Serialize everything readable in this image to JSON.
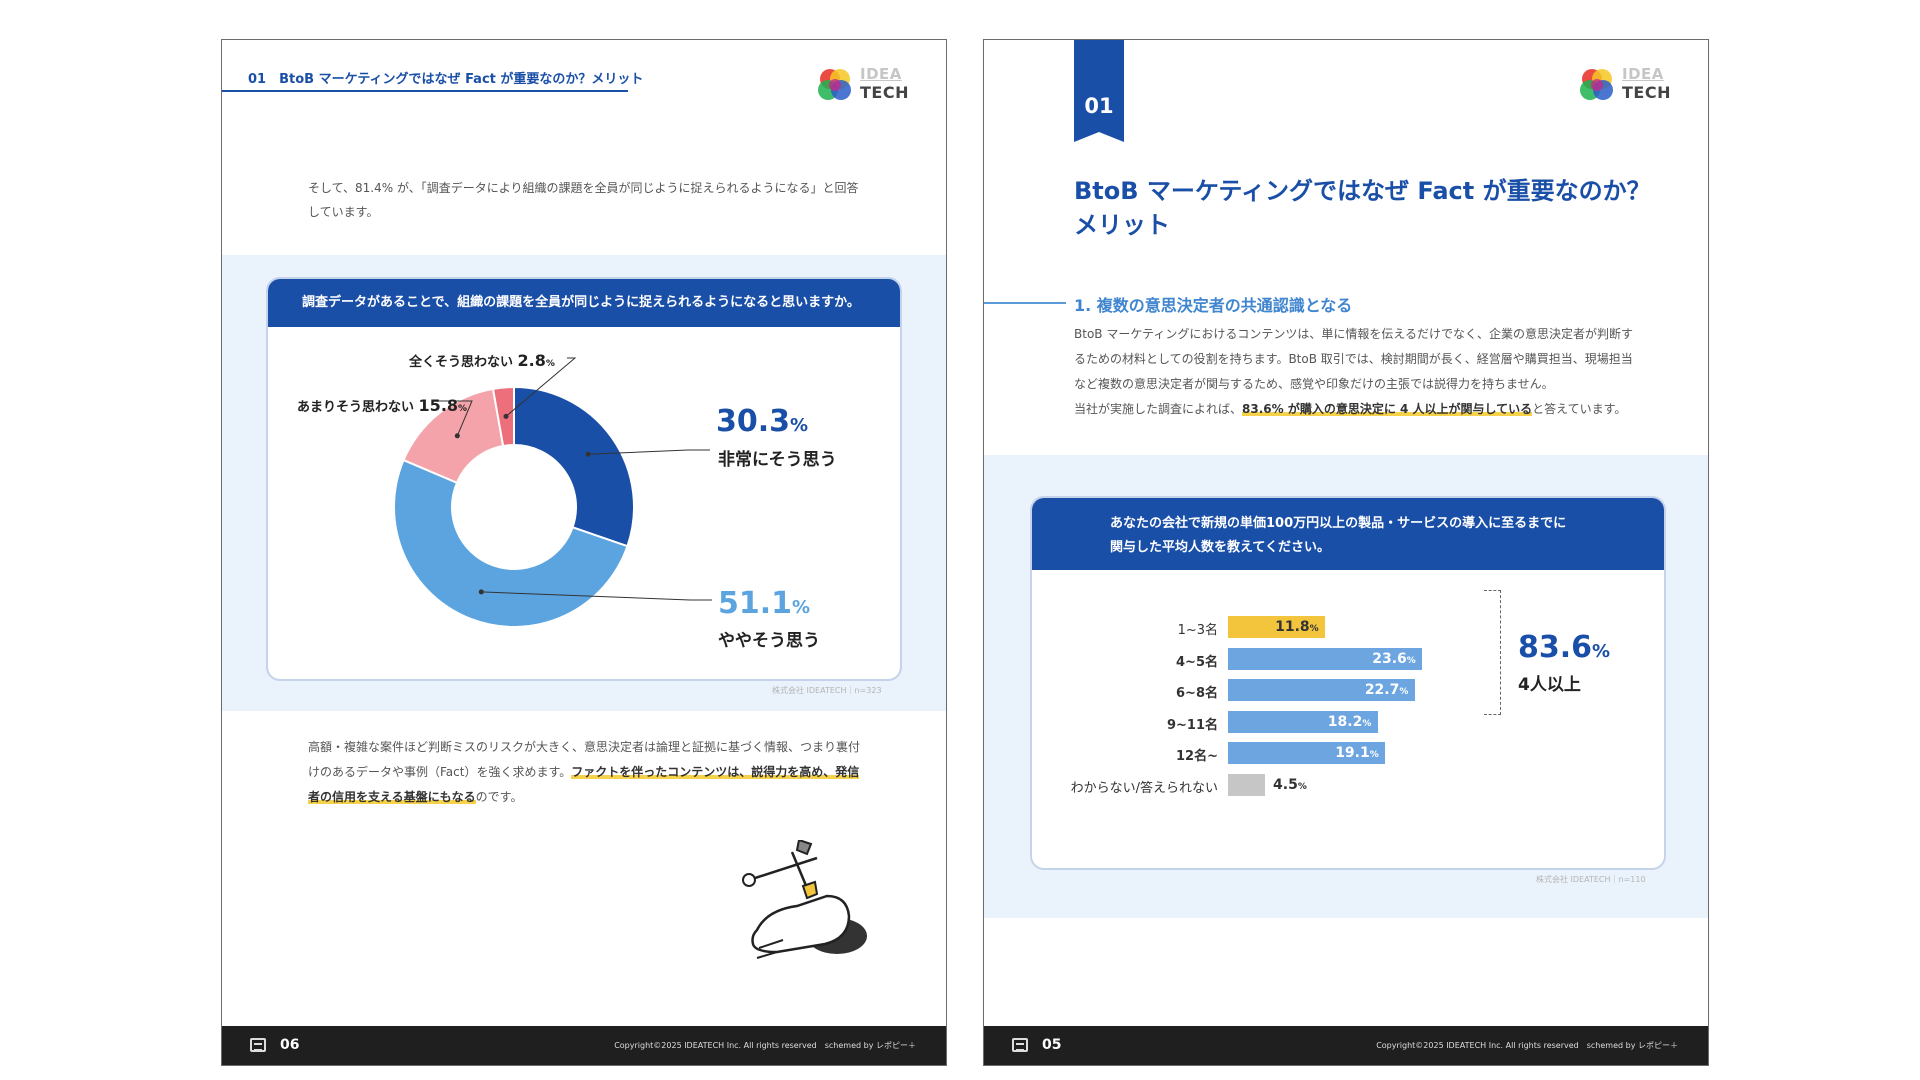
{
  "brand": {
    "line1": "IDEA",
    "line2": "TECH",
    "colors": {
      "red": "#e8382f",
      "green": "#1fb14f",
      "blue": "#2a5ec9",
      "magenta": "#c22a8e",
      "yellow": "#f4c724"
    }
  },
  "left_page": {
    "header": "01　BtoB マーケティングではなぜ Fact が重要なのか？メリット",
    "intro": "そして、81.4% が、「調査データにより組織の課題を全員が同じように捉えられるようになる」と回答しています。",
    "card": {
      "question": "調査データがあることで、組織の課題を全員が同じように捉えられるようになると思いますか。",
      "source": "株式会社 IDEATECH｜n=323"
    },
    "body": {
      "text1": "高額・複雑な案件ほど判断ミスのリスクが大きく、意思決定者は論理と証拠に基づく情報、つまり裏付けのあるデータや事例（Fact）を強く求めます。",
      "highlight": "ファクトを伴ったコンテンツは、説得力を高め、発信者の信用を支える基盤にもなる",
      "text2": "のです。"
    },
    "footer": {
      "page": "06",
      "copyright": "Copyright©2025 IDEATECH Inc. All rights reserved　schemed by レポピー＋"
    }
  },
  "right_page": {
    "ribbon": "01",
    "title_line1": "BtoB マーケティングではなぜ Fact が重要なのか？",
    "title_line2": "メリット",
    "subheading": "1. 複数の意思決定者の共通認識となる",
    "paragraph": "BtoB マーケティングにおけるコンテンツは、単に情報を伝えるだけでなく、企業の意思決定者が判断するための材料としての役割を持ちます。BtoB 取引では、検討期間が長く、経営層や購買担当、現場担当など複数の意思決定者が関与するため、感覚や印象だけの主張では説得力を持ちません。",
    "paragraph2_pre": "当社が実施した調査によれば、",
    "paragraph2_hl": "83.6% が購入の意思決定に 4 人以上が関与している",
    "paragraph2_post": "と答えています。",
    "card": {
      "question_line1": "あなたの会社で新規の単価100万円以上の製品・サービスの導入に至るまでに",
      "question_line2": "関与した平均人数を教えてください。",
      "source": "株式会社 IDEATECH｜n=110"
    },
    "footer": {
      "page": "05",
      "copyright": "Copyright©2025 IDEATECH Inc. All rights reserved　schemed by レポピー＋"
    }
  },
  "chart_data": [
    {
      "type": "pie",
      "title": "調査データがあることで、組織の課題を全員が同じように捉えられるようになると思いますか。",
      "unit": "%",
      "slices": [
        {
          "label": "非常にそう思う",
          "value": 30.3,
          "color": "#1a4fa8"
        },
        {
          "label": "ややそう思う",
          "value": 51.1,
          "color": "#5ca4e0"
        },
        {
          "label": "あまりそう思わない",
          "value": 15.8,
          "color": "#f4a3ab"
        },
        {
          "label": "全くそう思わない",
          "value": 2.8,
          "color": "#ec6f7b"
        }
      ]
    },
    {
      "type": "bar",
      "orientation": "horizontal",
      "title": "あなたの会社で新規の単価100万円以上の製品・サービスの導入に至るまでに関与した平均人数を教えてください。",
      "unit": "%",
      "categories": [
        "1~3名",
        "4~5名",
        "6~8名",
        "9~11名",
        "12名~",
        "わからない/答えられない"
      ],
      "values": [
        11.8,
        23.6,
        22.7,
        18.2,
        19.1,
        4.5
      ],
      "colors": [
        "#f2c53d",
        "#6ca5e0",
        "#6ca5e0",
        "#6ca5e0",
        "#6ca5e0",
        "#c6c6c6"
      ],
      "bracket": {
        "value": "83.6",
        "unit": "%",
        "caption": "4人以上"
      }
    }
  ]
}
